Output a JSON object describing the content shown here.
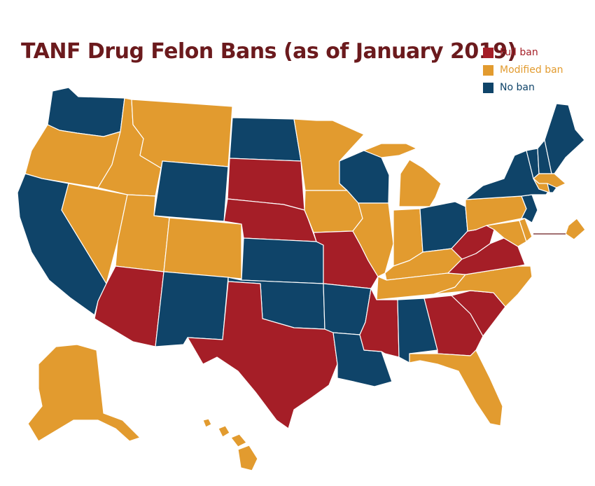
{
  "title": "TANF Drug Felon Bans (as of January 2019)",
  "colors": {
    "full": "#a51e27",
    "modified": "#e29b2f",
    "none": "#0f4469",
    "title": "#6b1a1d"
  },
  "legend": [
    {
      "key": "full",
      "label": "Full ban",
      "color": "#a51e27"
    },
    {
      "key": "modified",
      "label": "Modified ban",
      "color": "#e29b2f"
    },
    {
      "key": "none",
      "label": "No ban",
      "color": "#0f4469"
    }
  ],
  "states": {
    "WA": "none",
    "OR": "modified",
    "CA": "none",
    "NV": "modified",
    "ID": "modified",
    "MT": "modified",
    "WY": "none",
    "UT": "modified",
    "AZ": "full",
    "CO": "modified",
    "NM": "none",
    "ND": "none",
    "SD": "full",
    "NE": "full",
    "KS": "none",
    "OK": "none",
    "TX": "full",
    "MN": "modified",
    "IA": "modified",
    "MO": "full",
    "AR": "none",
    "LA": "none",
    "WI": "none",
    "IL": "modified",
    "MI": "modified",
    "IN": "modified",
    "OH": "none",
    "KY": "modified",
    "TN": "modified",
    "MS": "full",
    "AL": "none",
    "GA": "full",
    "FL": "modified",
    "SC": "full",
    "NC": "modified",
    "VA": "full",
    "WV": "full",
    "PA": "modified",
    "NY": "none",
    "VT": "none",
    "NH": "none",
    "ME": "none",
    "MA": "modified",
    "RI": "none",
    "CT": "modified",
    "NJ": "none",
    "DE": "modified",
    "MD": "modified",
    "DC": "modified",
    "AK": "modified",
    "HI": "modified"
  }
}
